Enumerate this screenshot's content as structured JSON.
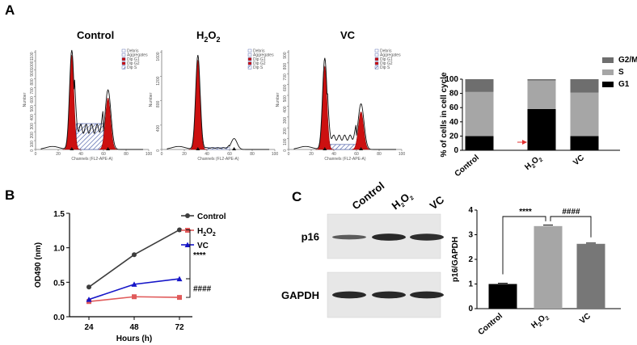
{
  "panel_labels": {
    "a": "A",
    "b": "B",
    "c": "C"
  },
  "flow": {
    "titles": [
      "Control",
      "H2O2",
      "VC"
    ],
    "x_axis_label": "Channels (FL2-APE-A)",
    "y_axis_label": "Number",
    "x_ticks": [
      0,
      20,
      40,
      60,
      80,
      100
    ],
    "y_ticks": [
      [
        0,
        100,
        200,
        300,
        400,
        500,
        600,
        700,
        800,
        900,
        1000,
        1100
      ],
      [
        0,
        400,
        800,
        1200,
        1600
      ],
      [
        0,
        100,
        200,
        300,
        400,
        500,
        600,
        700,
        800,
        900
      ]
    ],
    "legend": [
      "Debris",
      "Aggregates",
      "Dip G1",
      "Dip G2",
      "Dip S"
    ],
    "colors": {
      "g1": "#cc1010",
      "s_hatch": "#3a4fa0",
      "debris": "#8899cc"
    }
  },
  "chart_data": [
    {
      "id": "cell-cycle",
      "type": "bar",
      "stacked": true,
      "categories": [
        "Control",
        "H2O2",
        "VC"
      ],
      "series": [
        {
          "name": "G1",
          "values": [
            20,
            58,
            20
          ],
          "color": "#000000"
        },
        {
          "name": "S",
          "values": [
            62,
            40,
            61
          ],
          "color": "#a6a6a6"
        },
        {
          "name": "G2/M",
          "values": [
            18,
            2,
            19
          ],
          "color": "#6e6e6e"
        }
      ],
      "ylabel": "% of cells in cell cycle",
      "ylim": [
        0,
        100
      ],
      "yticks": [
        0,
        20,
        40,
        60,
        80,
        100
      ],
      "legend_position": "right",
      "annotation": "red arrow pointing to H2O2 G1"
    },
    {
      "id": "od490",
      "type": "line",
      "x": [
        24,
        48,
        72
      ],
      "series": [
        {
          "name": "Control",
          "values": [
            0.43,
            0.9,
            1.26
          ],
          "color": "#3d3d3d",
          "marker": "circle"
        },
        {
          "name": "H2O2",
          "values": [
            0.22,
            0.29,
            0.28
          ],
          "color": "#e05a5a",
          "marker": "square"
        },
        {
          "name": "VC",
          "values": [
            0.25,
            0.47,
            0.55
          ],
          "color": "#1515c8",
          "marker": "triangle"
        }
      ],
      "xlabel": "Hours (h)",
      "ylabel": "OD490 (nm)",
      "ylim": [
        0,
        1.5
      ],
      "yticks": [
        0.0,
        0.5,
        1.0,
        1.5
      ],
      "yticklabels": [
        "0.0",
        "0.5",
        "1.0",
        "1.5"
      ],
      "legend_position": "top-right",
      "significance": [
        "****",
        "####"
      ]
    },
    {
      "id": "p16-gapdh",
      "type": "bar",
      "categories": [
        "Control",
        "H2O2",
        "VC"
      ],
      "values": [
        1.0,
        3.35,
        2.63
      ],
      "errors": [
        0.03,
        0.04,
        0.03
      ],
      "colors": [
        "#000000",
        "#a6a6a6",
        "#777777"
      ],
      "ylabel": "p16/GAPDH",
      "ylim": [
        0,
        4
      ],
      "yticks": [
        0,
        1,
        2,
        3,
        4
      ],
      "significance": [
        "****",
        "####"
      ]
    }
  ],
  "western": {
    "lanes": [
      "Control",
      "H2O2",
      "VC"
    ],
    "bands": [
      {
        "label": "p16",
        "intensity": [
          0.45,
          0.95,
          0.9
        ]
      },
      {
        "label": "GAPDH",
        "intensity": [
          0.95,
          0.95,
          0.95
        ]
      }
    ]
  }
}
